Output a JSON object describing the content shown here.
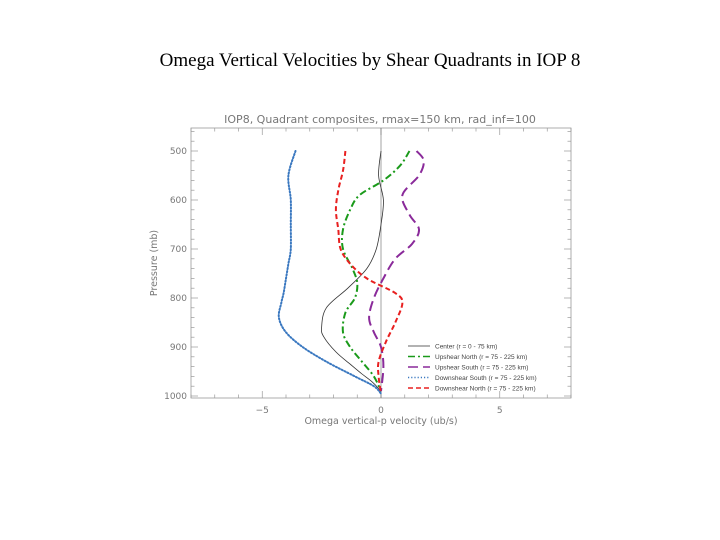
{
  "slide": {
    "title": "Omega Vertical Velocities by Shear Quadrants in IOP 8"
  },
  "chart_data": {
    "type": "line",
    "title": "IOP8, Quadrant composites, rmax=150 km, rad_inf=100",
    "xlabel": "Omega vertical-p velocity (ub/s)",
    "ylabel": "Pressure (mb)",
    "xlim": [
      -8,
      8
    ],
    "ylim": [
      1000,
      460
    ],
    "xticks": [
      -5,
      0,
      5
    ],
    "yticks": [
      500,
      600,
      700,
      800,
      900,
      1000
    ],
    "legend_position": "bottom-right",
    "series": [
      {
        "name": "Center (r = 0 - 75 km)",
        "color": "#333333",
        "dash": "solid",
        "x": [
          0,
          -0.1,
          0.1,
          0,
          -0.2,
          -0.6,
          -1.4,
          -2.3,
          -2.5,
          -2.4,
          -1.9,
          -1.3,
          -0.8,
          -0.4,
          -0.1,
          0
        ],
        "y": [
          500,
          550,
          600,
          650,
          700,
          740,
          780,
          820,
          860,
          880,
          910,
          935,
          955,
          970,
          985,
          995
        ]
      },
      {
        "name": "Upshear North (r = 75 - 225 km)",
        "color": "#1a9a1a",
        "dash": "dashdot",
        "x": [
          1.2,
          0.8,
          0.1,
          -0.9,
          -1.3,
          -1.6,
          -1.6,
          -1.2,
          -1.0,
          -1.1,
          -1.5,
          -1.6,
          -1.3,
          -0.8,
          -0.3,
          0
        ],
        "y": [
          500,
          530,
          560,
          590,
          620,
          660,
          700,
          740,
          770,
          800,
          830,
          870,
          900,
          930,
          960,
          990
        ]
      },
      {
        "name": "Upshear South (r = 75 - 225 km)",
        "color": "#8a2a9a",
        "dash": "longdash",
        "x": [
          1.5,
          1.8,
          1.6,
          0.9,
          1.2,
          1.6,
          1.3,
          0.6,
          0.1,
          -0.3,
          -0.5,
          -0.3,
          0,
          0.1,
          0
        ],
        "y": [
          500,
          520,
          550,
          590,
          630,
          660,
          690,
          720,
          760,
          800,
          840,
          870,
          900,
          940,
          990
        ]
      },
      {
        "name": "Downshear South (r = 75 - 225 km)",
        "color": "#3a78c0",
        "dash": "dotted",
        "x": [
          -3.6,
          -3.9,
          -3.8,
          -3.8,
          -3.8,
          -3.9,
          -4.0,
          -4.1,
          -4.2,
          -4.3,
          -4.0,
          -3.3,
          -2.3,
          -1.1,
          -0.3,
          0
        ],
        "y": [
          500,
          550,
          600,
          650,
          700,
          730,
          760,
          790,
          810,
          840,
          870,
          900,
          930,
          960,
          980,
          995
        ]
      },
      {
        "name": "Downshear North (r = 75 - 225 km)",
        "color": "#e82020",
        "dash": "dashed",
        "x": [
          -1.5,
          -1.6,
          -1.8,
          -1.9,
          -1.8,
          -1.7,
          -1.3,
          -0.6,
          0.6,
          0.9,
          0.6,
          0.2,
          -0.1,
          -0.1,
          0
        ],
        "y": [
          500,
          540,
          580,
          620,
          660,
          700,
          730,
          760,
          790,
          810,
          850,
          890,
          930,
          960,
          995
        ]
      }
    ]
  }
}
